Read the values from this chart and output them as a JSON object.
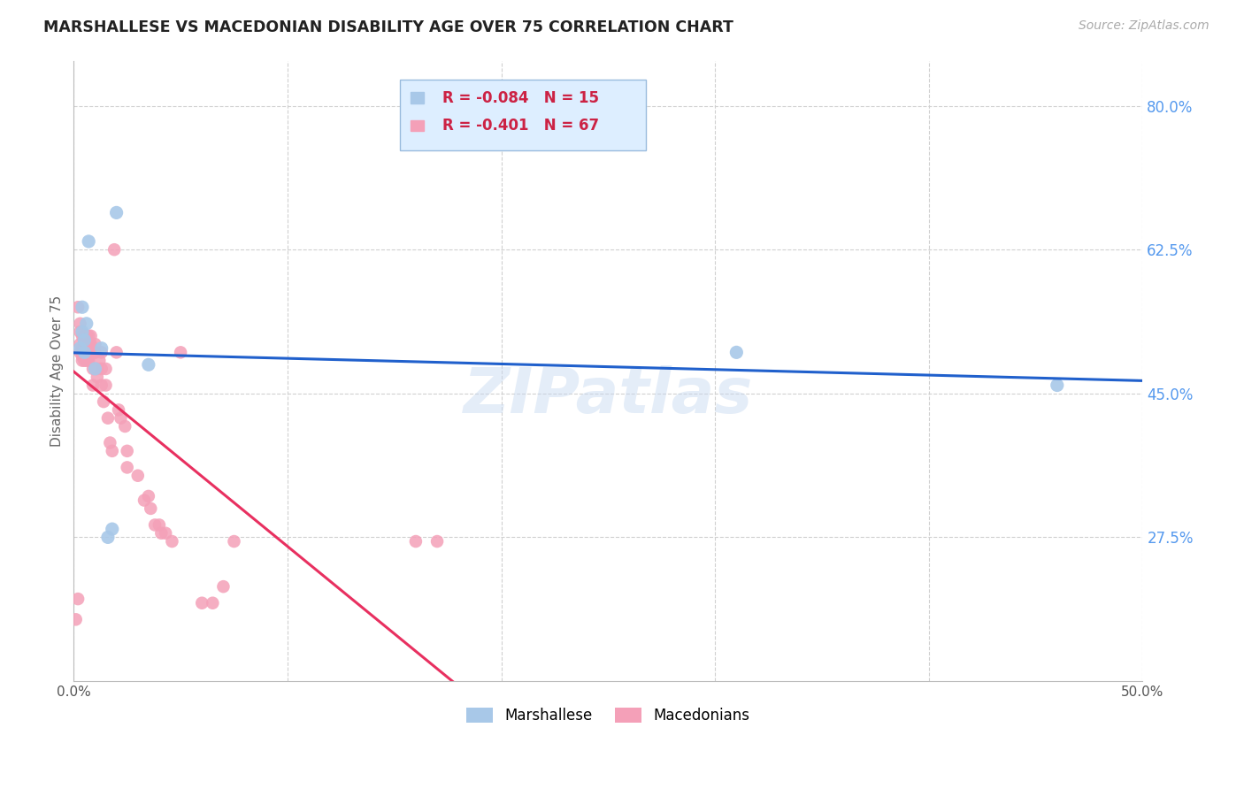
{
  "title": "MARSHALLESE VS MACEDONIAN DISABILITY AGE OVER 75 CORRELATION CHART",
  "source": "Source: ZipAtlas.com",
  "ylabel": "Disability Age Over 75",
  "watermark": "ZIPatlas",
  "right_ytick_labels": [
    "80.0%",
    "62.5%",
    "45.0%",
    "27.5%"
  ],
  "right_ytick_values": [
    0.8,
    0.625,
    0.45,
    0.275
  ],
  "xmin": 0.0,
  "xmax": 0.5,
  "ymin": 0.1,
  "ymax": 0.855,
  "marshallese_R": -0.084,
  "marshallese_N": 15,
  "macedonian_R": -0.401,
  "macedonian_N": 67,
  "marshallese_color": "#a8c8e8",
  "macedonian_color": "#f4a0b8",
  "marshallese_line_color": "#2060cc",
  "macedonian_line_color": "#e83060",
  "legend_marshallese_R_color": "#cc0044",
  "legend_macedonian_R_color": "#cc0044",
  "legend_N_color": "#cc0044",
  "grid_color": "#d0d0d0",
  "bg_color": "#ffffff",
  "title_color": "#222222",
  "source_color": "#aaaaaa",
  "right_axis_color": "#5599ee",
  "legend_box_facecolor": "#ddeeff",
  "legend_box_edgecolor": "#99bbdd",
  "marshallese_x": [
    0.003,
    0.004,
    0.004,
    0.005,
    0.005,
    0.006,
    0.007,
    0.01,
    0.013,
    0.016,
    0.018,
    0.02,
    0.035,
    0.31,
    0.46
  ],
  "marshallese_y": [
    0.505,
    0.555,
    0.525,
    0.515,
    0.5,
    0.535,
    0.635,
    0.48,
    0.505,
    0.275,
    0.285,
    0.67,
    0.485,
    0.5,
    0.46
  ],
  "macedonian_x": [
    0.001,
    0.002,
    0.002,
    0.003,
    0.003,
    0.003,
    0.003,
    0.004,
    0.004,
    0.004,
    0.004,
    0.005,
    0.005,
    0.005,
    0.005,
    0.005,
    0.006,
    0.006,
    0.006,
    0.006,
    0.007,
    0.007,
    0.007,
    0.007,
    0.008,
    0.008,
    0.008,
    0.009,
    0.009,
    0.01,
    0.01,
    0.01,
    0.011,
    0.011,
    0.012,
    0.013,
    0.013,
    0.013,
    0.014,
    0.015,
    0.015,
    0.016,
    0.017,
    0.018,
    0.019,
    0.02,
    0.021,
    0.022,
    0.024,
    0.025,
    0.025,
    0.03,
    0.033,
    0.035,
    0.036,
    0.038,
    0.04,
    0.041,
    0.043,
    0.046,
    0.05,
    0.06,
    0.065,
    0.07,
    0.075,
    0.16,
    0.17
  ],
  "macedonian_y": [
    0.175,
    0.2,
    0.555,
    0.5,
    0.525,
    0.51,
    0.535,
    0.49,
    0.495,
    0.505,
    0.52,
    0.49,
    0.495,
    0.505,
    0.51,
    0.52,
    0.49,
    0.5,
    0.51,
    0.52,
    0.49,
    0.495,
    0.51,
    0.52,
    0.5,
    0.51,
    0.52,
    0.46,
    0.48,
    0.5,
    0.5,
    0.51,
    0.47,
    0.48,
    0.49,
    0.46,
    0.48,
    0.5,
    0.44,
    0.46,
    0.48,
    0.42,
    0.39,
    0.38,
    0.625,
    0.5,
    0.43,
    0.42,
    0.41,
    0.38,
    0.36,
    0.35,
    0.32,
    0.325,
    0.31,
    0.29,
    0.29,
    0.28,
    0.28,
    0.27,
    0.5,
    0.195,
    0.195,
    0.215,
    0.27,
    0.27,
    0.27
  ],
  "mac_line_x_solid_end": 0.2,
  "xtick_positions": [
    0.0,
    0.1,
    0.2,
    0.3,
    0.4,
    0.5
  ],
  "xtick_labels": [
    "0.0%",
    "",
    "",
    "",
    "",
    "50.0%"
  ]
}
